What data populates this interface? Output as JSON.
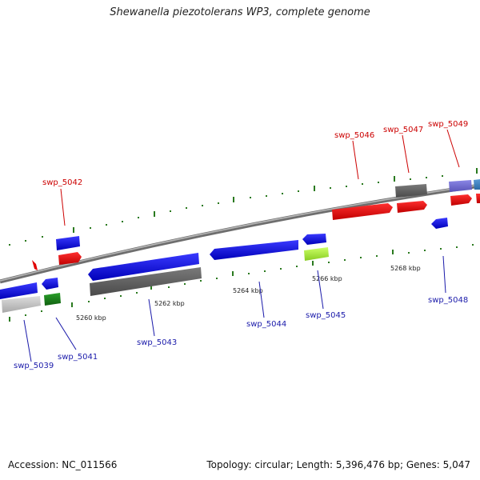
{
  "title": "Shewanella piezotolerans WP3, complete genome",
  "footer": {
    "accession": "Accession: NC_011566",
    "info": "Topology: circular; Length: 5,396,476 bp; Genes: 5,047"
  },
  "colors": {
    "forward": "#e00000",
    "reverse": "#0000dd",
    "backbone": "#888888",
    "tick": "#2a7a1f",
    "forward_label": "#cc0000",
    "reverse_label": "#1a1aaa"
  },
  "axis_labels": [
    "5260 kbp",
    "5262 kbp",
    "5264 kbp",
    "5266 kbp",
    "5268 kbp"
  ],
  "gene_labels": [
    {
      "id": "g1",
      "text": "swp_5042",
      "strand": "forward"
    },
    {
      "id": "g2",
      "text": "swp_5046",
      "strand": "forward"
    },
    {
      "id": "g3",
      "text": "swp_5047",
      "strand": "forward"
    },
    {
      "id": "g4",
      "text": "swp_5049",
      "strand": "forward"
    },
    {
      "id": "g5",
      "text": "swp_5039",
      "strand": "reverse"
    },
    {
      "id": "g6",
      "text": "swp_5041",
      "strand": "reverse"
    },
    {
      "id": "g7",
      "text": "swp_5043",
      "strand": "reverse"
    },
    {
      "id": "g8",
      "text": "swp_5044",
      "strand": "reverse"
    },
    {
      "id": "g9",
      "text": "swp_5045",
      "strand": "reverse"
    },
    {
      "id": "g10",
      "text": "swp_5048",
      "strand": "reverse"
    }
  ]
}
